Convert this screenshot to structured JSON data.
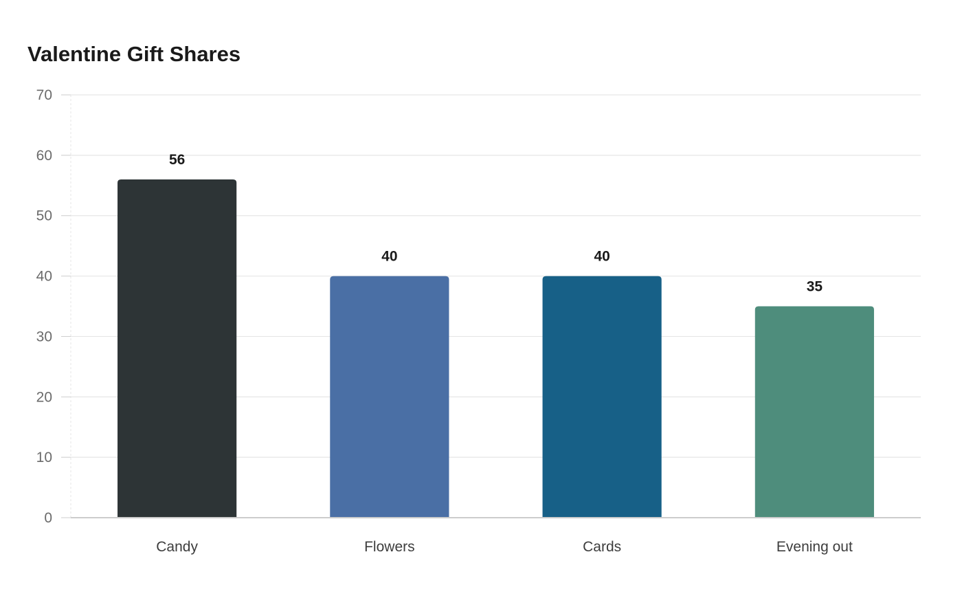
{
  "chart_data": {
    "type": "bar",
    "title": "Valentine Gift Shares",
    "categories": [
      "Candy",
      "Flowers",
      "Cards",
      "Evening out"
    ],
    "values": [
      56,
      40,
      40,
      35
    ],
    "colors": [
      "#2d3436",
      "#4a6fa5",
      "#176087",
      "#4e8d7c"
    ],
    "ylim": [
      0,
      70
    ],
    "yticks": [
      0,
      10,
      20,
      30,
      40,
      50,
      60,
      70
    ],
    "xlabel": "",
    "ylabel": "",
    "grid": true,
    "data_labels": true
  }
}
